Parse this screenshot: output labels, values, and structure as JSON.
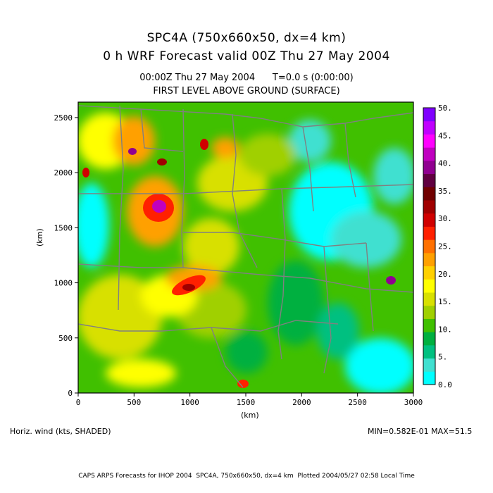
{
  "title": {
    "line1": "SPC4A (750x660x50, dx=4 km)",
    "line2": "0 h WRF Forecast valid 00Z Thu 27 May 2004",
    "time_line": "00:00Z Thu 27 May 2004      T=0.0 s (0:00:00)",
    "level_line": "FIRST LEVEL ABOVE GROUND (SURFACE)"
  },
  "axes": {
    "x_label": "(km)",
    "y_label": "(km)",
    "x_ticks": [
      "0",
      "500",
      "1000",
      "1500",
      "2000",
      "2500",
      "3000"
    ],
    "y_ticks": [
      "0",
      "500",
      "1000",
      "1500",
      "2000",
      "2500"
    ],
    "x_range": [
      0,
      3000
    ],
    "y_range": [
      0,
      2640
    ]
  },
  "colorbar": {
    "labels": [
      "0.0",
      "5.",
      "10.",
      "15.",
      "20.",
      "25.",
      "30.",
      "35.",
      "40.",
      "45.",
      "50."
    ],
    "colors": [
      "#00ffff",
      "#40e0d0",
      "#00c080",
      "#00b040",
      "#40c000",
      "#a0d000",
      "#d8e000",
      "#ffff00",
      "#ffd000",
      "#ffa000",
      "#ff7000",
      "#ff2000",
      "#d00000",
      "#a00000",
      "#700000",
      "#600040",
      "#900090",
      "#c000c0",
      "#ff00ff",
      "#c000ff",
      "#8000ff"
    ]
  },
  "field_label": "Horiz. wind (kts, SHADED)",
  "stats": "MIN=0.582E-01 MAX=51.5",
  "footer": "CAPS ARPS Forecasts for IHOP 2004  SPC4A, 750x660x50, dx=4 km  Plotted 2004/05/27 02:58 Local Time"
}
